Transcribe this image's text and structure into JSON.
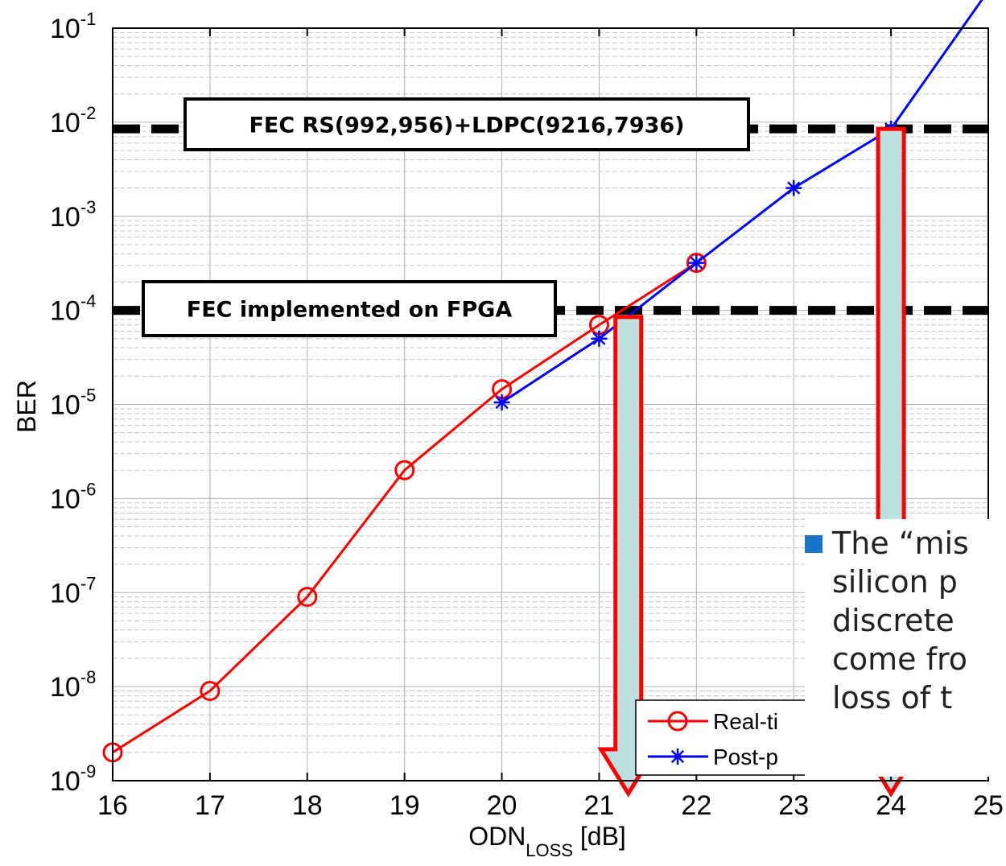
{
  "chart_data": {
    "type": "line",
    "xlabel": "ODN",
    "xlabel_sub": "LOSS",
    "xlabel_unit": "[dB]",
    "ylabel": "BER",
    "xlim": [
      16,
      25
    ],
    "ylim": [
      1e-09,
      0.1
    ],
    "yscale": "log",
    "grid": true,
    "x_ticks": [
      "16",
      "17",
      "18",
      "19",
      "20",
      "21",
      "22",
      "23",
      "24",
      "25"
    ],
    "y_ticks": [
      {
        "base": "10",
        "exp": "-1"
      },
      {
        "base": "10",
        "exp": "-2"
      },
      {
        "base": "10",
        "exp": "-3"
      },
      {
        "base": "10",
        "exp": "-4"
      },
      {
        "base": "10",
        "exp": "-5"
      },
      {
        "base": "10",
        "exp": "-6"
      },
      {
        "base": "10",
        "exp": "-7"
      },
      {
        "base": "10",
        "exp": "-8"
      },
      {
        "base": "10",
        "exp": "-9"
      }
    ],
    "series": [
      {
        "name": "Real-ti",
        "color": "#ff0000",
        "marker": "circle",
        "x": [
          16,
          17,
          18,
          19,
          20,
          21,
          22
        ],
        "y": [
          2e-09,
          9e-09,
          9e-08,
          2e-06,
          1.45e-05,
          7e-05,
          0.00032
        ]
      },
      {
        "name": "Post-p",
        "color": "#0000ff",
        "marker": "star",
        "x": [
          20,
          21,
          22,
          23,
          24,
          25
        ],
        "y": [
          1.05e-05,
          5e-05,
          0.00032,
          0.002,
          0.0085,
          0.25
        ]
      }
    ],
    "thresholds": [
      {
        "label": "FEC RS(992,956)+LDPC(9216,7936)",
        "y": 0.0085
      },
      {
        "label": "FEC implemented on FPGA",
        "y": 0.0001
      }
    ],
    "arrows": [
      {
        "x": 21.3,
        "y_from": 8.5e-05,
        "y_to": 1e-09
      },
      {
        "x": 24.0,
        "y_from": 0.0085,
        "y_to": 1e-09
      }
    ],
    "legend": {
      "placement": "bottom-right"
    }
  },
  "colors": {
    "arrow_fill": "#bde0e0",
    "arrow_stroke": "#ff0000",
    "grid": "#b0b0b0",
    "bullet": "#1874c8"
  },
  "overlay": {
    "text": "The “mis\nsilicon p\ndiscrete\ncome fro\nloss of t"
  }
}
